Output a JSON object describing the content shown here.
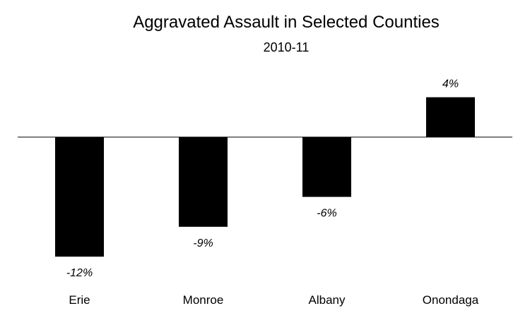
{
  "chart_data": {
    "type": "bar",
    "title": "Aggravated Assault in Selected Counties",
    "subtitle": "2010-11",
    "xlabel": "",
    "ylabel": "",
    "categories": [
      "Erie",
      "Monroe",
      "Albany",
      "Onondaga"
    ],
    "values": [
      -12,
      -9,
      -6,
      4
    ],
    "data_labels": [
      "-12%",
      "-9%",
      "-6%",
      "4%"
    ],
    "ylim": [
      -12,
      4
    ],
    "grid": false,
    "legend": "none",
    "colors": {
      "bar": "#000000",
      "axis": "#000000",
      "background": "#ffffff"
    }
  }
}
